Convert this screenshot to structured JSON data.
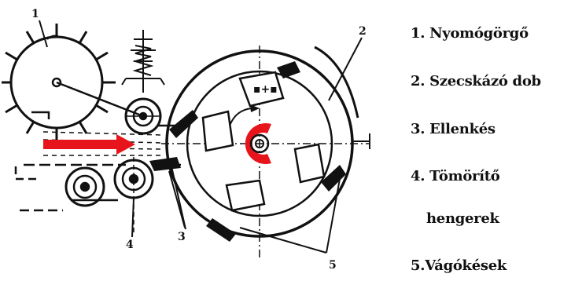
{
  "diagram": {
    "callout_numbers": [
      "1",
      "2",
      "3",
      "4",
      "5"
    ],
    "colors": {
      "feed_arrow": "#e8141b",
      "drum_hub": "#e8141b",
      "line": "#111111"
    }
  },
  "legend": {
    "items": [
      "1. Nyomógörgő",
      "2. Szecskázó dob",
      "3. Ellenkés",
      "4. Tömörítő",
      "hengerek",
      "5.Vágókések"
    ]
  }
}
